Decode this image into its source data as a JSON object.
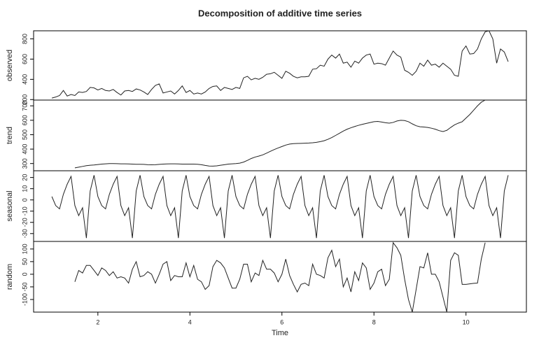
{
  "chart_data": {
    "type": "line",
    "title": "Decomposition of additive time series",
    "x_label": "Time",
    "color": "#222222",
    "xlim": [
      0.603,
      11.313
    ],
    "xticks": [
      2,
      4,
      6,
      8,
      10
    ],
    "x": [
      1,
      1.083,
      1.167,
      1.25,
      1.333,
      1.417,
      1.5,
      1.583,
      1.667,
      1.75,
      1.833,
      1.917,
      2,
      2.083,
      2.167,
      2.25,
      2.333,
      2.417,
      2.5,
      2.583,
      2.667,
      2.75,
      2.833,
      2.917,
      3,
      3.083,
      3.167,
      3.25,
      3.333,
      3.417,
      3.5,
      3.583,
      3.667,
      3.75,
      3.833,
      3.917,
      4,
      4.083,
      4.167,
      4.25,
      4.333,
      4.417,
      4.5,
      4.583,
      4.667,
      4.75,
      4.833,
      4.917,
      5,
      5.083,
      5.167,
      5.25,
      5.333,
      5.417,
      5.5,
      5.583,
      5.667,
      5.75,
      5.833,
      5.917,
      6,
      6.083,
      6.167,
      6.25,
      6.333,
      6.417,
      6.5,
      6.583,
      6.667,
      6.75,
      6.833,
      6.917,
      7,
      7.083,
      7.167,
      7.25,
      7.333,
      7.417,
      7.5,
      7.583,
      7.667,
      7.75,
      7.833,
      7.917,
      8,
      8.083,
      8.167,
      8.25,
      8.333,
      8.417,
      8.5,
      8.583,
      8.667,
      8.75,
      8.833,
      8.917,
      9,
      9.083,
      9.167,
      9.25,
      9.333,
      9.417,
      9.5,
      9.583,
      9.667,
      9.75,
      9.833,
      9.917,
      10,
      10.083,
      10.167,
      10.25,
      10.333,
      10.417,
      10.5,
      10.583,
      10.667,
      10.75,
      10.833,
      10.917
    ],
    "panels": [
      {
        "y_label": "observed",
        "ylim": [
          195,
          880
        ],
        "yticks": [
          200,
          400,
          600,
          800
        ],
        "values": [
          215,
          225,
          240,
          290,
          235,
          250,
          240,
          275,
          270,
          280,
          320,
          315,
          295,
          310,
          290,
          285,
          300,
          270,
          245,
          285,
          290,
          280,
          305,
          295,
          275,
          250,
          300,
          340,
          355,
          265,
          275,
          285,
          255,
          290,
          335,
          270,
          290,
          255,
          265,
          255,
          275,
          310,
          330,
          335,
          290,
          320,
          310,
          300,
          320,
          310,
          415,
          430,
          395,
          410,
          400,
          420,
          450,
          455,
          470,
          440,
          410,
          480,
          460,
          430,
          415,
          425,
          425,
          430,
          500,
          505,
          540,
          530,
          600,
          640,
          610,
          650,
          560,
          570,
          520,
          580,
          560,
          610,
          640,
          650,
          550,
          560,
          555,
          540,
          610,
          680,
          640,
          620,
          490,
          470,
          440,
          480,
          560,
          530,
          590,
          540,
          550,
          520,
          560,
          530,
          500,
          440,
          430,
          680,
          730,
          650,
          655,
          700,
          800,
          870,
          880,
          800,
          560,
          700,
          670,
          575
        ]
      },
      {
        "y_label": "trend",
        "ylim": [
          250,
          740
        ],
        "yticks": [
          300,
          400,
          500,
          600,
          700
        ],
        "values": [
          null,
          null,
          null,
          null,
          null,
          null,
          270,
          275,
          280,
          285,
          288,
          290,
          293,
          296,
          298,
          300,
          300,
          299,
          298,
          298,
          297,
          296,
          295,
          295,
          294,
          292,
          291,
          292,
          294,
          296,
          297,
          298,
          298,
          297,
          296,
          296,
          296,
          296,
          295,
          292,
          287,
          283,
          282,
          284,
          288,
          292,
          296,
          298,
          300,
          303,
          310,
          322,
          335,
          345,
          352,
          360,
          372,
          385,
          397,
          408,
          418,
          428,
          435,
          438,
          439,
          440,
          441,
          442,
          444,
          447,
          452,
          458,
          468,
          480,
          495,
          510,
          525,
          538,
          548,
          557,
          565,
          572,
          578,
          584,
          590,
          592,
          588,
          583,
          580,
          585,
          595,
          600,
          598,
          590,
          575,
          562,
          555,
          553,
          550,
          545,
          538,
          528,
          522,
          530,
          550,
          568,
          580,
          590,
          615,
          640,
          670,
          700,
          725,
          740,
          null,
          null,
          null,
          null,
          null,
          null
        ]
      },
      {
        "y_label": "seasonal",
        "ylim": [
          -37,
          26
        ],
        "yticks": [
          -30,
          -20,
          -10,
          0,
          10,
          20
        ],
        "values": [
          3,
          -5,
          -8,
          5,
          14,
          21,
          -5,
          -14,
          -7,
          -34,
          8,
          22,
          3,
          -5,
          -8,
          5,
          14,
          21,
          -5,
          -14,
          -7,
          -34,
          8,
          22,
          3,
          -5,
          -8,
          5,
          14,
          21,
          -5,
          -14,
          -7,
          -34,
          8,
          22,
          3,
          -5,
          -8,
          5,
          14,
          21,
          -5,
          -14,
          -7,
          -34,
          8,
          22,
          3,
          -5,
          -8,
          5,
          14,
          21,
          -5,
          -14,
          -7,
          -34,
          8,
          22,
          3,
          -5,
          -8,
          5,
          14,
          21,
          -5,
          -14,
          -7,
          -34,
          8,
          22,
          3,
          -5,
          -8,
          5,
          14,
          21,
          -5,
          -14,
          -7,
          -34,
          8,
          22,
          3,
          -5,
          -8,
          5,
          14,
          21,
          -5,
          -14,
          -7,
          -34,
          8,
          22,
          3,
          -5,
          -8,
          5,
          14,
          21,
          -5,
          -14,
          -7,
          -34,
          8,
          22,
          3,
          -5,
          -8,
          5,
          14,
          21,
          -5,
          -14,
          -7,
          -34,
          8,
          22
        ]
      },
      {
        "y_label": "random",
        "ylim": [
          -150,
          130
        ],
        "yticks": [
          -100,
          -50,
          0,
          50,
          100
        ],
        "values": [
          null,
          null,
          null,
          null,
          null,
          null,
          -30,
          15,
          5,
          35,
          35,
          15,
          -5,
          25,
          15,
          -5,
          10,
          -15,
          -10,
          -15,
          -35,
          20,
          50,
          -10,
          -5,
          10,
          0,
          -35,
          0,
          40,
          50,
          -25,
          -5,
          -10,
          -10,
          45,
          -10,
          35,
          -20,
          -30,
          -60,
          -45,
          30,
          55,
          45,
          25,
          -15,
          -55,
          -55,
          -20,
          40,
          40,
          -30,
          5,
          -5,
          55,
          20,
          20,
          5,
          -30,
          0,
          60,
          -5,
          -40,
          -70,
          -40,
          -35,
          -45,
          40,
          0,
          -5,
          -15,
          65,
          95,
          30,
          60,
          -50,
          -15,
          -70,
          10,
          -25,
          45,
          25,
          -60,
          -35,
          10,
          20,
          -45,
          -20,
          125,
          105,
          75,
          -20,
          -100,
          -150,
          -60,
          30,
          25,
          85,
          0,
          0,
          -30,
          -90,
          -150,
          55,
          85,
          75,
          -40,
          -40,
          -38,
          -36,
          -35,
          60,
          125,
          null,
          null,
          null,
          null,
          null,
          null
        ]
      }
    ]
  }
}
